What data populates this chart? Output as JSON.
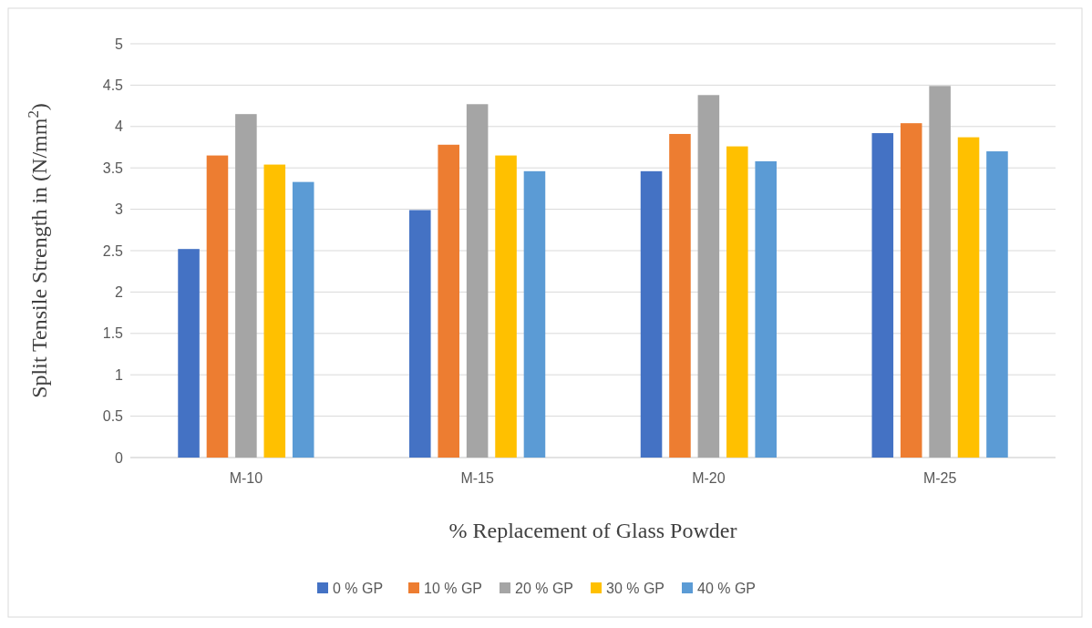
{
  "chart_data": {
    "type": "bar",
    "xlabel": "% Replacement of Glass Powder",
    "ylabel": "Split Tensile Strength in (N/mm$^{2}$)",
    "categories": [
      "M-10",
      "M-15",
      "M-20",
      "M-25"
    ],
    "series": [
      {
        "name": "0 % GP",
        "color": "#4472c4",
        "values": [
          2.52,
          2.99,
          3.46,
          3.92
        ]
      },
      {
        "name": "10 % GP",
        "color": "#ed7d31",
        "values": [
          3.65,
          3.78,
          3.91,
          4.04
        ]
      },
      {
        "name": "20 % GP",
        "color": "#a5a5a5",
        "values": [
          4.15,
          4.27,
          4.38,
          4.49
        ]
      },
      {
        "name": "30 % GP",
        "color": "#ffc000",
        "values": [
          3.54,
          3.65,
          3.76,
          3.87
        ]
      },
      {
        "name": "40 % GP",
        "color": "#5b9bd5",
        "values": [
          3.33,
          3.46,
          3.58,
          3.7
        ]
      }
    ],
    "ylim": [
      0,
      5
    ],
    "yticks": [
      0,
      0.5,
      1,
      1.5,
      2,
      2.5,
      3,
      3.5,
      4,
      4.5,
      5
    ],
    "grid": "y",
    "legend": "bottom"
  }
}
